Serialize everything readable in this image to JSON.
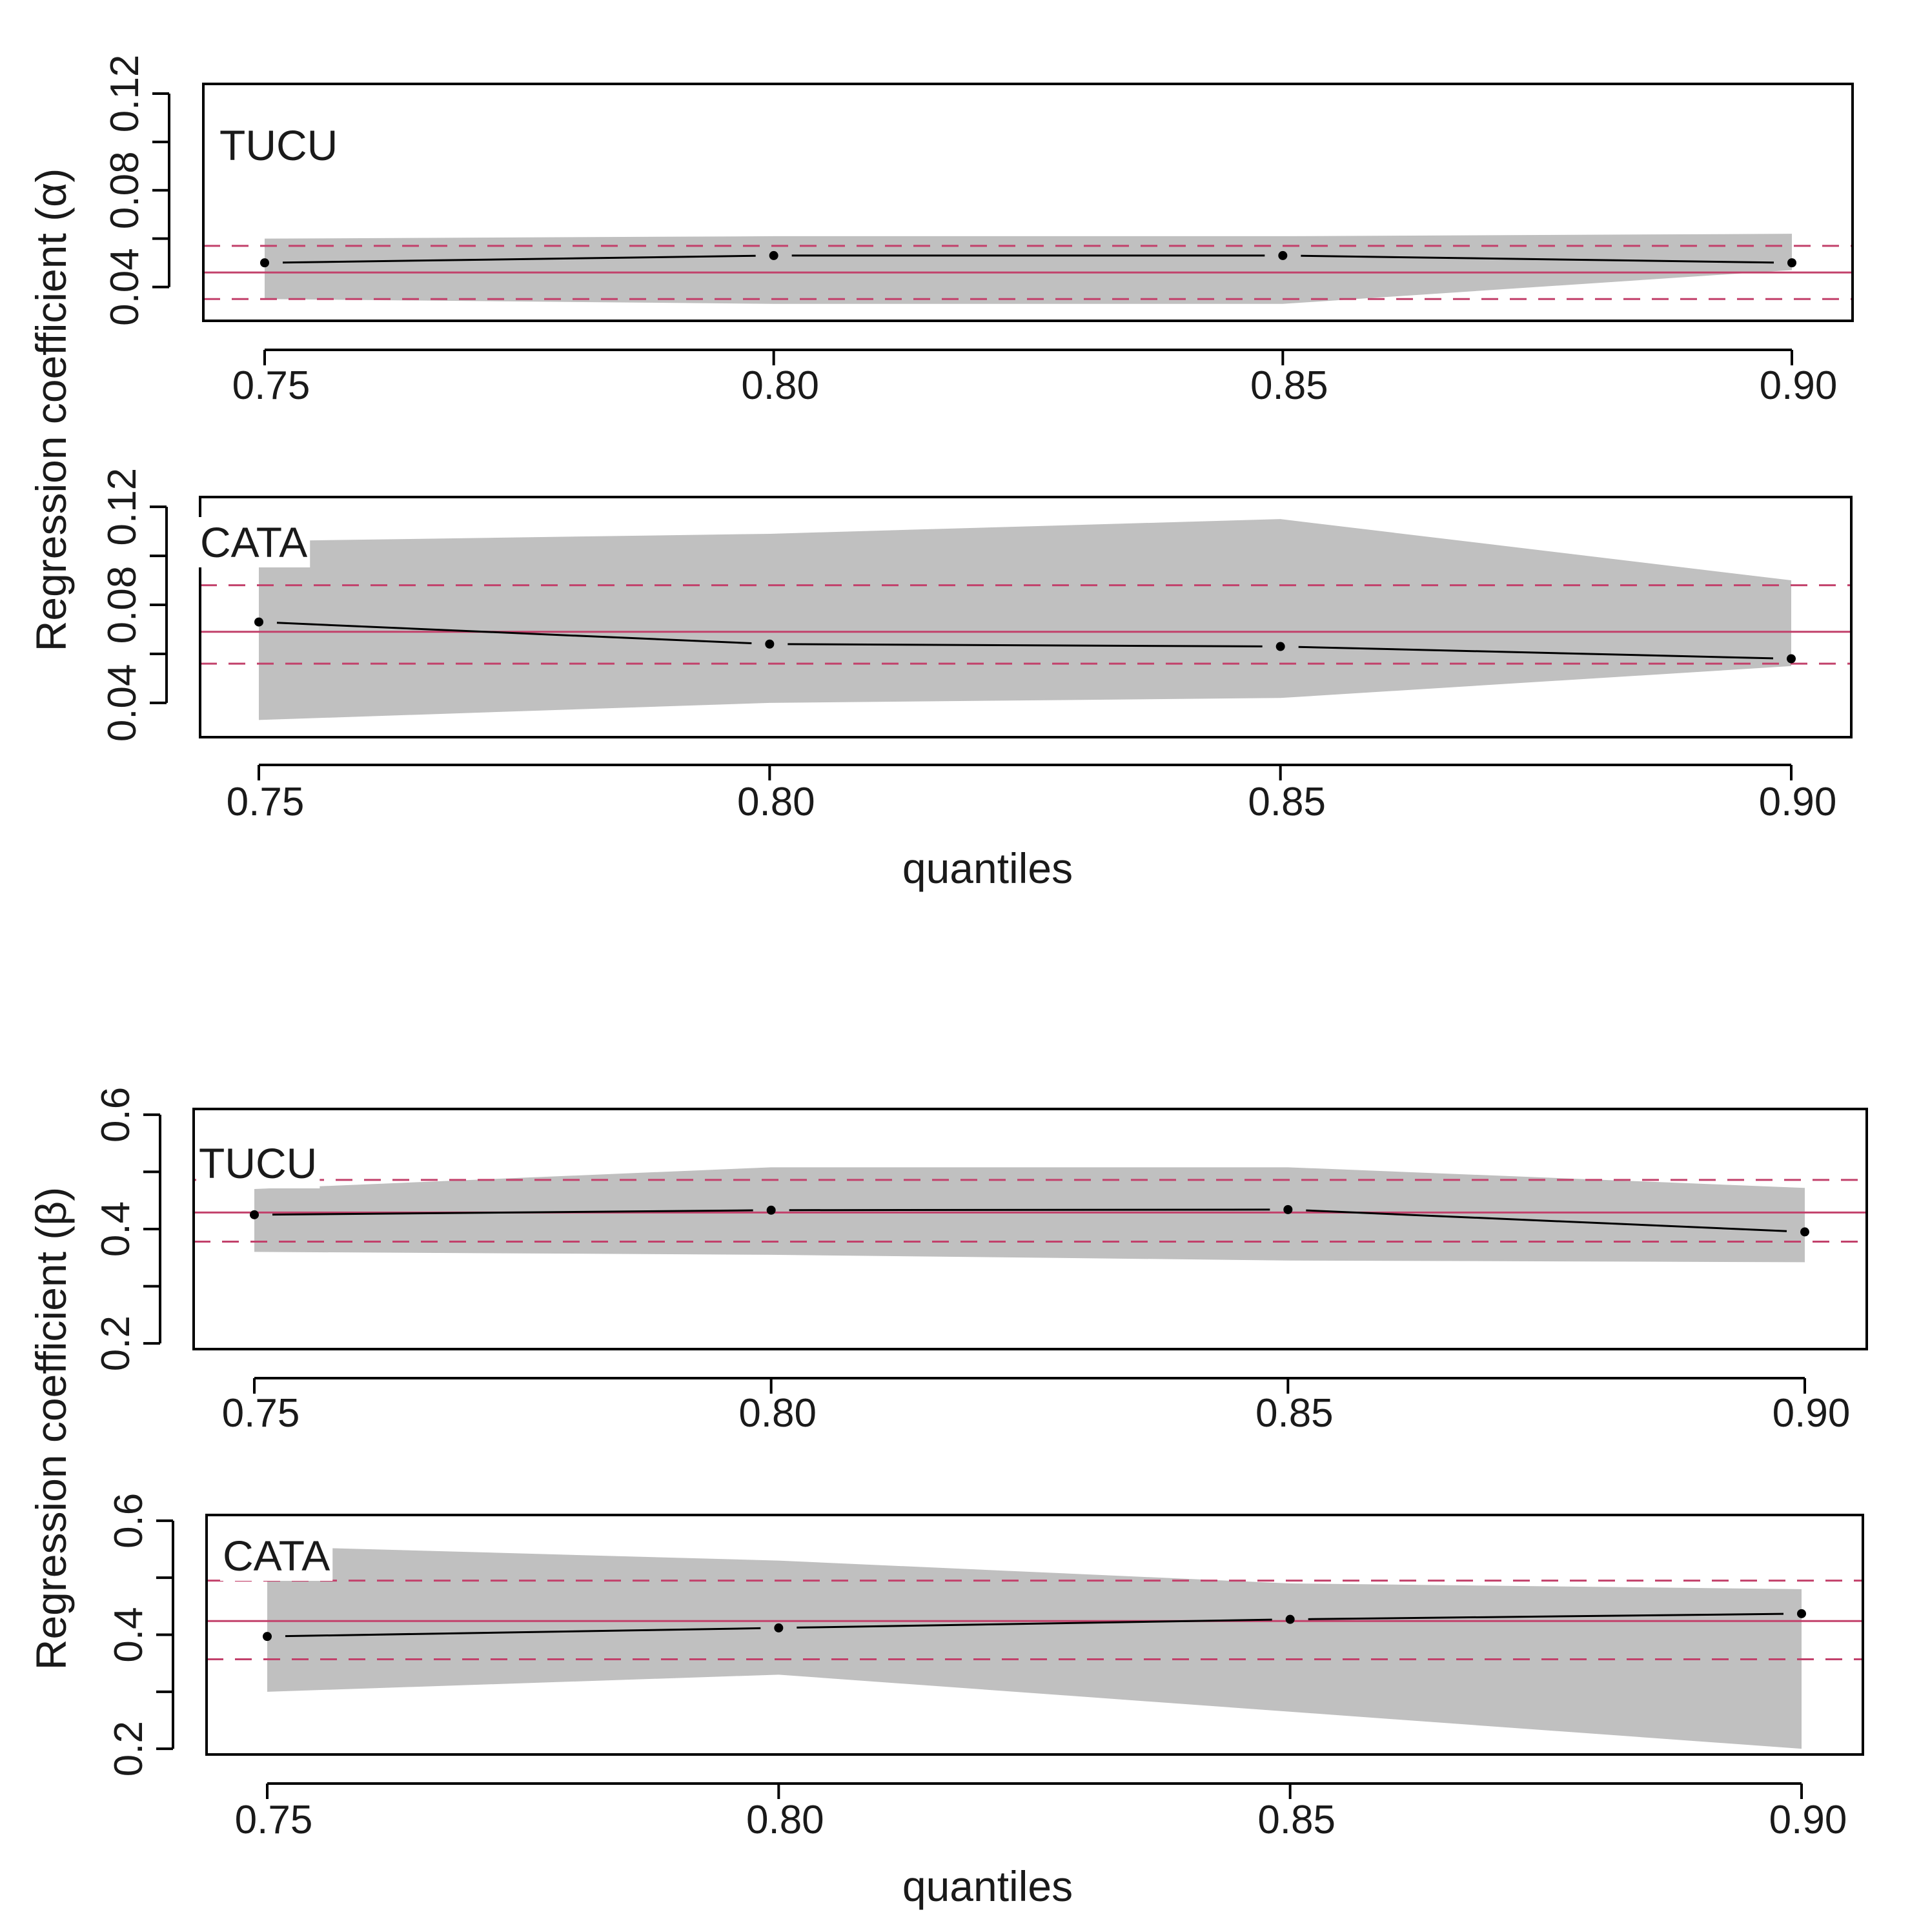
{
  "figure": {
    "alpha_ylabel": "Regression coefficient (α)",
    "beta_ylabel": "Regression coefficient (β)",
    "xlabel": "quantiles"
  },
  "colors": {
    "band": "#c0c0c0",
    "estimate_line": "#000000",
    "reference_line": "#c2416b",
    "axes": "#000000"
  },
  "chart_data": [
    {
      "id": "alpha-tucu",
      "type": "line",
      "panel_label": "TUCU",
      "parameter": "alpha",
      "x": [
        0.75,
        0.8,
        0.85,
        0.9
      ],
      "x_tick_labels": [
        "0.75",
        "0.80",
        "0.85",
        "0.90"
      ],
      "estimate": [
        0.05,
        0.053,
        0.053,
        0.05
      ],
      "ci_lower": [
        0.035,
        0.033,
        0.033,
        0.047
      ],
      "ci_upper": [
        0.06,
        0.061,
        0.061,
        0.062
      ],
      "ols_estimate": 0.046,
      "ols_ci": [
        0.035,
        0.057
      ],
      "ylim": [
        0.026,
        0.124
      ],
      "y_ticks": [
        0.04,
        0.08,
        0.12
      ],
      "y_tick_labels": [
        "0.04",
        "0.08",
        "0.12"
      ],
      "y_minor_ticks": [
        0.06,
        0.1
      ]
    },
    {
      "id": "alpha-cata",
      "type": "line",
      "panel_label": "CATA",
      "parameter": "alpha",
      "x": [
        0.75,
        0.8,
        0.85,
        0.9
      ],
      "x_tick_labels": [
        "0.75",
        "0.80",
        "0.85",
        "0.90"
      ],
      "estimate": [
        0.073,
        0.064,
        0.063,
        0.058
      ],
      "ci_lower": [
        0.033,
        0.04,
        0.042,
        0.055
      ],
      "ci_upper": [
        0.106,
        0.109,
        0.115,
        0.09
      ],
      "ols_estimate": 0.069,
      "ols_ci": [
        0.056,
        0.088
      ],
      "ylim": [
        0.026,
        0.124
      ],
      "y_ticks": [
        0.04,
        0.08,
        0.12
      ],
      "y_tick_labels": [
        "0.04",
        "0.08",
        "0.12"
      ],
      "y_minor_ticks": [
        0.06,
        0.1
      ]
    },
    {
      "id": "beta-tucu",
      "type": "line",
      "panel_label": "TUCU",
      "parameter": "beta",
      "x": [
        0.75,
        0.8,
        0.85,
        0.9
      ],
      "x_tick_labels": [
        "0.75",
        "0.80",
        "0.85",
        "0.90"
      ],
      "estimate": [
        0.425,
        0.433,
        0.434,
        0.395
      ],
      "ci_lower": [
        0.36,
        0.355,
        0.345,
        0.342
      ],
      "ci_upper": [
        0.47,
        0.508,
        0.508,
        0.472
      ],
      "ols_estimate": 0.429,
      "ols_ci": [
        0.378,
        0.486
      ],
      "ylim": [
        0.19,
        0.61
      ],
      "y_ticks": [
        0.2,
        0.4,
        0.6
      ],
      "y_tick_labels": [
        "0.2",
        "0.4",
        "0.6"
      ],
      "y_minor_ticks": [
        0.3,
        0.5
      ]
    },
    {
      "id": "beta-cata",
      "type": "line",
      "panel_label": "CATA",
      "parameter": "beta",
      "x": [
        0.75,
        0.8,
        0.85,
        0.9
      ],
      "x_tick_labels": [
        "0.75",
        "0.80",
        "0.85",
        "0.90"
      ],
      "estimate": [
        0.397,
        0.412,
        0.427,
        0.437
      ],
      "ci_lower": [
        0.3,
        0.33,
        0.265,
        0.2
      ],
      "ci_upper": [
        0.555,
        0.53,
        0.49,
        0.48
      ],
      "ols_estimate": 0.424,
      "ols_ci": [
        0.357,
        0.495
      ],
      "ylim": [
        0.19,
        0.61
      ],
      "y_ticks": [
        0.2,
        0.4,
        0.6
      ],
      "y_tick_labels": [
        "0.2",
        "0.4",
        "0.6"
      ],
      "y_minor_ticks": [
        0.3,
        0.5
      ]
    }
  ]
}
